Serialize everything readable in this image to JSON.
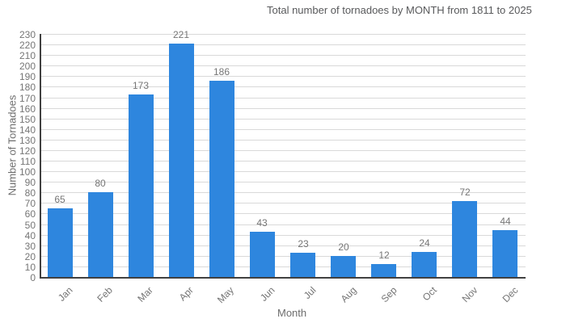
{
  "chart_data": {
    "type": "bar",
    "title": "Total number of tornadoes by MONTH from 1811 to 2025",
    "xlabel": "Month",
    "ylabel": "Number of Tornadoes",
    "categories": [
      "Jan",
      "Feb",
      "Mar",
      "Apr",
      "May",
      "Jun",
      "Jul",
      "Aug",
      "Sep",
      "Oct",
      "Nov",
      "Dec"
    ],
    "values": [
      65,
      80,
      173,
      221,
      186,
      43,
      23,
      20,
      12,
      24,
      72,
      44
    ],
    "ylim": [
      0,
      230
    ],
    "ytick_step": 10,
    "grid": true,
    "legend_position": "none",
    "bar_color": "#2e86de",
    "grid_color": "#d9d9d9",
    "axis_color": "#404040",
    "tick_label_color": "#757575",
    "value_label_color": "#757575",
    "title_color": "#58595b"
  }
}
